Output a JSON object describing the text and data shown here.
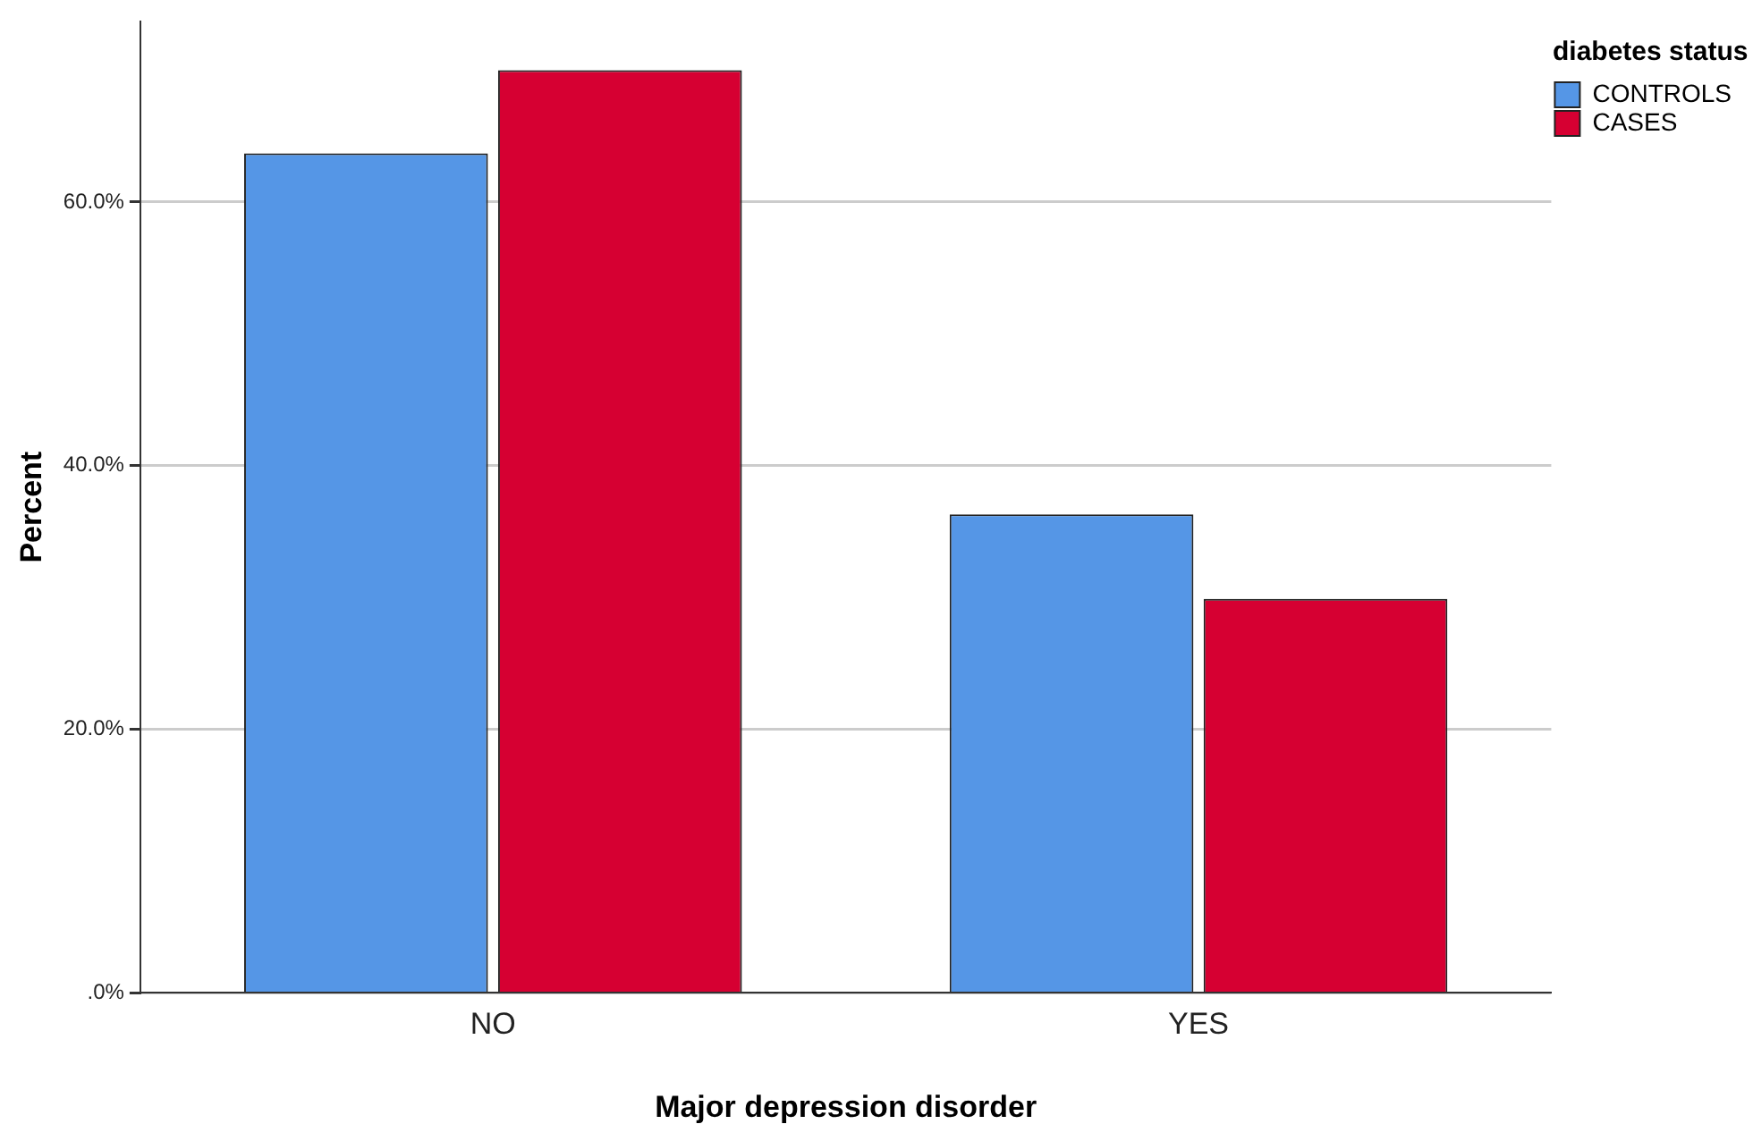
{
  "chart_data": {
    "type": "bar",
    "xlabel": "Major depression disorder",
    "ylabel": "Percent",
    "legend_title": "diabetes status",
    "categories": [
      "NO",
      "YES"
    ],
    "series": [
      {
        "name": "CONTROLS",
        "color": "#5596e6",
        "values": [
          63.7,
          36.3
        ]
      },
      {
        "name": "CASES",
        "color": "#d60032",
        "values": [
          70.0,
          29.9
        ]
      }
    ],
    "ylim": [
      0,
      73.7
    ],
    "yticks": [
      {
        "value": 0,
        "label": ".0%"
      },
      {
        "value": 20,
        "label": "20.0%"
      },
      {
        "value": 40,
        "label": "40.0%"
      },
      {
        "value": 60,
        "label": "60.0%"
      }
    ],
    "grid": "y",
    "legend": "top right"
  }
}
